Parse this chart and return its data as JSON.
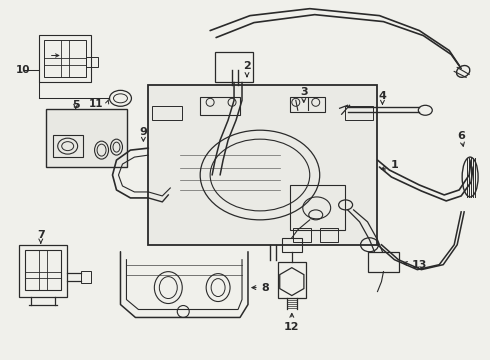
{
  "bg_color": "#f0f0eb",
  "line_color": "#2a2a2a",
  "fig_width": 4.9,
  "fig_height": 3.6,
  "dpi": 100
}
